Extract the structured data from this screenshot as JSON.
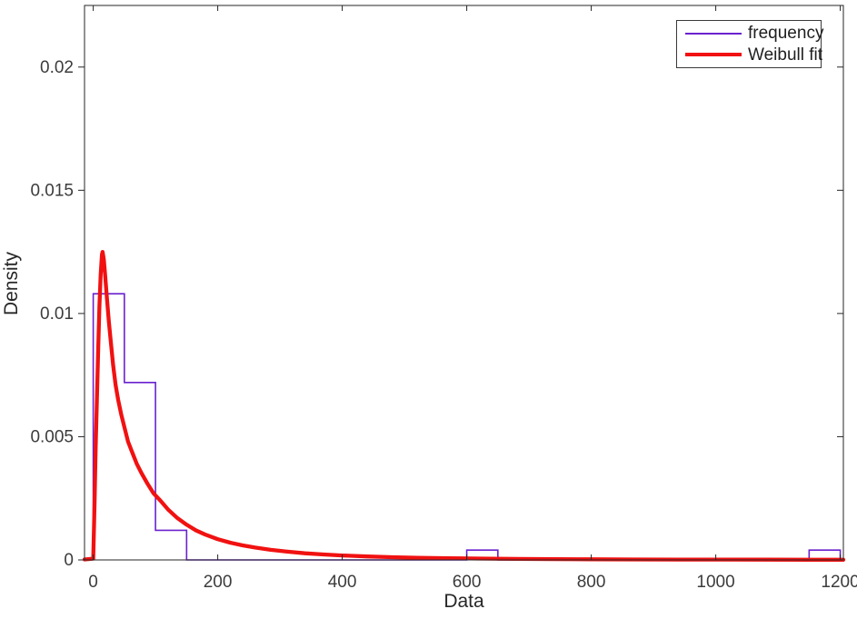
{
  "figure": {
    "background": "#ffffff",
    "axis_color": "#262626",
    "tick_label_color": "#3c3c3c"
  },
  "chart_data": {
    "type": "bar",
    "subtype": "histogram-with-fit-line",
    "title": "",
    "xlabel": "Data",
    "ylabel": "Density",
    "xlim": [
      -14,
      1205
    ],
    "ylim": [
      0,
      0.0225
    ],
    "grid": false,
    "x_ticks": [
      0,
      200,
      400,
      600,
      800,
      1000,
      1200
    ],
    "x_tick_labels": [
      "0",
      "200",
      "400",
      "600",
      "800",
      "1000",
      "1200"
    ],
    "y_ticks": [
      0,
      0.005,
      0.01,
      0.015,
      0.02
    ],
    "y_tick_labels": [
      "0",
      "0.005",
      "0.01",
      "0.015",
      "0.02"
    ],
    "series": [
      {
        "name": "frequency",
        "type": "histogram-outline",
        "color": "#6a21ce",
        "line_width": 1.6,
        "bin_width": 50,
        "bins": [
          {
            "start": 0,
            "end": 50,
            "density": 0.0108
          },
          {
            "start": 50,
            "end": 100,
            "density": 0.0072
          },
          {
            "start": 100,
            "end": 150,
            "density": 0.0012
          },
          {
            "start": 600,
            "end": 650,
            "density": 0.0004
          },
          {
            "start": 1150,
            "end": 1200,
            "density": 0.0004
          }
        ],
        "domain": [
          0,
          1200
        ]
      },
      {
        "name": "Weibull fit",
        "type": "line",
        "color": "#f11111",
        "line_width": 4.3,
        "peak": {
          "x": 15,
          "y": 0.0125
        },
        "points": [
          [
            -14,
            2e-05
          ],
          [
            0,
            5e-05
          ],
          [
            2,
            0.0022
          ],
          [
            4,
            0.0046
          ],
          [
            6,
            0.0066
          ],
          [
            8,
            0.0086
          ],
          [
            10,
            0.0103
          ],
          [
            12,
            0.0116
          ],
          [
            14,
            0.0124
          ],
          [
            15,
            0.0125
          ],
          [
            17,
            0.0122
          ],
          [
            19,
            0.0116
          ],
          [
            22,
            0.0106
          ],
          [
            25,
            0.0097
          ],
          [
            28,
            0.0089
          ],
          [
            32,
            0.0079
          ],
          [
            36,
            0.0071
          ],
          [
            40,
            0.0065
          ],
          [
            45,
            0.0059
          ],
          [
            50,
            0.0054
          ],
          [
            56,
            0.0048
          ],
          [
            62,
            0.0044
          ],
          [
            70,
            0.0039
          ],
          [
            78,
            0.0035
          ],
          [
            87,
            0.0031
          ],
          [
            97,
            0.0027
          ],
          [
            108,
            0.0024
          ],
          [
            120,
            0.00205
          ],
          [
            135,
            0.0017
          ],
          [
            150,
            0.00143
          ],
          [
            165,
            0.0012
          ],
          [
            180,
            0.00103
          ],
          [
            200,
            0.00084
          ],
          [
            220,
            0.0007
          ],
          [
            240,
            0.00059
          ],
          [
            260,
            0.0005
          ],
          [
            285,
            0.00041
          ],
          [
            310,
            0.00034
          ],
          [
            340,
            0.00027
          ],
          [
            370,
            0.00022
          ],
          [
            400,
            0.00018
          ],
          [
            440,
            0.00014
          ],
          [
            480,
            0.00011
          ],
          [
            520,
            9e-05
          ],
          [
            570,
            7e-05
          ],
          [
            620,
            5.5e-05
          ],
          [
            680,
            4.2e-05
          ],
          [
            740,
            3.3e-05
          ],
          [
            800,
            2.6e-05
          ],
          [
            870,
            2e-05
          ],
          [
            940,
            1.6e-05
          ],
          [
            1010,
            1.3e-05
          ],
          [
            1080,
            1e-05
          ],
          [
            1150,
            8e-06
          ],
          [
            1205,
            7e-06
          ]
        ]
      }
    ],
    "legend": {
      "position": "top-right",
      "entries": [
        {
          "label": "frequency",
          "color": "#6a21ce",
          "line_width": 2.3
        },
        {
          "label": "Weibull fit",
          "color": "#f11111",
          "line_width": 4.3
        }
      ]
    }
  }
}
